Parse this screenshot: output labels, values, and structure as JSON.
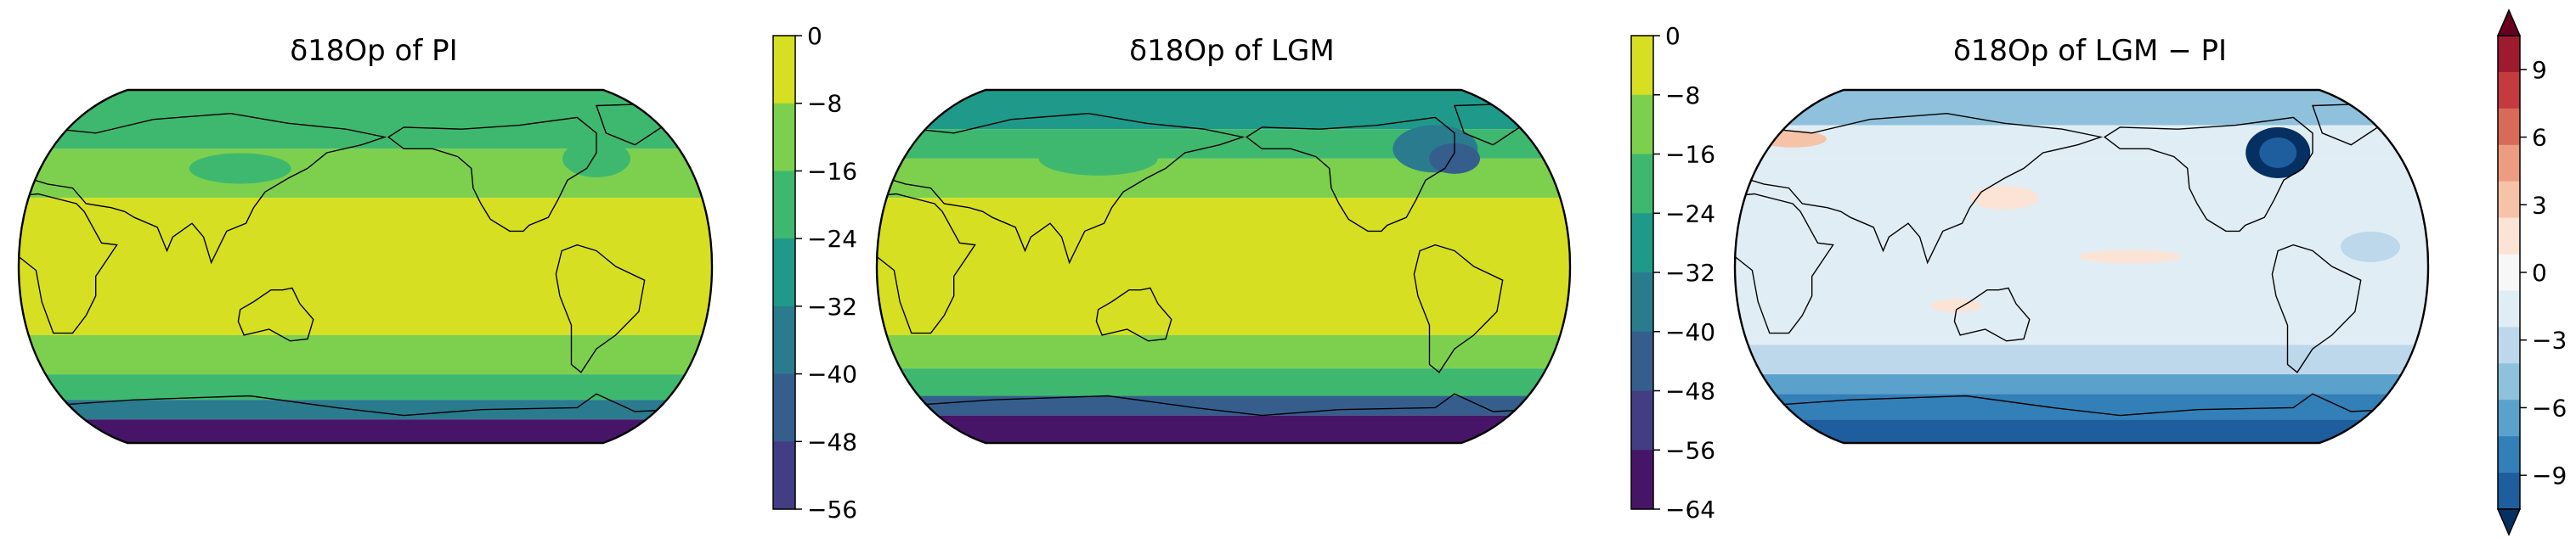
{
  "figure": {
    "panels": [
      {
        "title": "δ18Op of PI",
        "colormap": "viridis",
        "colorbar_ticks": [
          "0",
          "−8",
          "−16",
          "−24",
          "−32",
          "−40",
          "−48",
          "−56"
        ],
        "colorbar_extend": "neither"
      },
      {
        "title": "δ18Op of LGM",
        "colormap": "viridis",
        "colorbar_ticks": [
          "0",
          "−8",
          "−16",
          "−24",
          "−32",
          "−40",
          "−48",
          "−56",
          "−64"
        ],
        "colorbar_extend": "neither"
      },
      {
        "title": "δ18Op of LGM − PI",
        "colormap": "RdBu_r",
        "colorbar_ticks": [
          "9",
          "6",
          "3",
          "0",
          "−3",
          "−6",
          "−9"
        ],
        "colorbar_extend": "both"
      }
    ],
    "colors": {
      "viridis_levels": [
        "#d7df23",
        "#7dd04e",
        "#3fb86f",
        "#1f9a8a",
        "#2a7b8e",
        "#355e8d",
        "#433d84",
        "#471567"
      ],
      "rdbu_levels": [
        "#67001f",
        "#9e1a2e",
        "#c33a3f",
        "#d86a5a",
        "#ec9c81",
        "#f6c3a8",
        "#fbe3d6",
        "#f7f7f7",
        "#e1edf4",
        "#bcd8ea",
        "#8fc1dd",
        "#5aa1cc",
        "#337fb8",
        "#1e5d9e",
        "#053061"
      ]
    }
  },
  "chart_data": [
    {
      "type": "heatmap",
      "title": "δ18Op of PI",
      "projection": "Robinson, centered on the Pacific",
      "colorbar": {
        "ticks": [
          0,
          -8,
          -16,
          -24,
          -32,
          -40,
          -48,
          -56
        ],
        "range": [
          -56,
          0
        ],
        "step": 8
      },
      "description_of_field": [
        "tropics and subtropics: 0 to −8",
        "mid-latitudes: −8 to −16",
        "northern high latitudes: −16 to −24",
        "Antarctic coast: −24 to −32",
        "Antarctic interior: −48 to −56"
      ]
    },
    {
      "type": "heatmap",
      "title": "δ18Op of LGM",
      "projection": "Robinson, centered on the Pacific",
      "colorbar": {
        "ticks": [
          0,
          -8,
          -16,
          -24,
          -32,
          -40,
          -48,
          -56,
          -64
        ],
        "range": [
          -64,
          0
        ],
        "step": 8
      },
      "description_of_field": [
        "tropics and subtropics: 0 to −8",
        "mid-latitudes: −8 to −16",
        "northern high latitudes: −16 to −32",
        "Antarctic interior: −48 to −64"
      ]
    },
    {
      "type": "heatmap",
      "title": "δ18Op of LGM − PI",
      "projection": "Robinson, centered on the Pacific",
      "colorbar": {
        "ticks": [
          9,
          6,
          3,
          0,
          -3,
          -6,
          -9
        ],
        "range": [
          -10.5,
          10.5
        ],
        "extend": "both"
      },
      "description_of_field": [
        "Laurentide ice sheet region: about −9 to −10",
        "Antarctica: −3 to −9",
        "Arctic/Greenland: −3 to −6",
        "tropical Pacific: 0 to +1.5",
        "Europe/Asia high latitudes: 0 to +3"
      ]
    }
  ]
}
